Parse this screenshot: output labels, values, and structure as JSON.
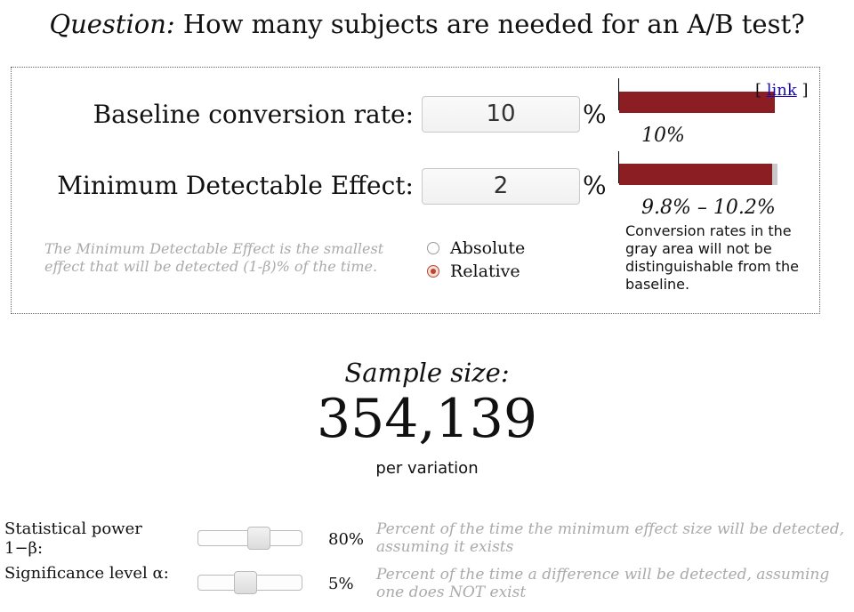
{
  "header": {
    "question_prefix": "Question:",
    "question_text": " How many subjects are needed for an A/B test?"
  },
  "baseline": {
    "label": "Baseline conversion rate:",
    "value": "10",
    "unit": "%",
    "bar_fraction": 1.0,
    "bar_caption": "10%"
  },
  "mde": {
    "label": "Minimum Detectable Effect:",
    "value": "2",
    "unit": "%",
    "range_caption": "9.8% – 10.2%",
    "range_note": "Conversion rates in the gray area will not be distinguishable from the baseline.",
    "help": "The Minimum Detectable Effect is the smallest effect that will be detected (1-β)% of the time."
  },
  "mode": {
    "options": [
      "Absolute",
      "Relative"
    ],
    "selected": "Relative"
  },
  "link": {
    "open": "[ ",
    "label": "link",
    "close": " ]"
  },
  "result": {
    "label": "Sample size:",
    "value": "354,139",
    "suffix": "per variation"
  },
  "power": {
    "label": "Statistical power 1−β:",
    "value": "80%",
    "level": 0.8,
    "help": "Percent of the time the minimum effect size will be detected, assuming it exists"
  },
  "significance": {
    "label": "Significance level α:",
    "value": "5%",
    "level": 0.05,
    "help": "Percent of the time a difference will be detected, assuming one does NOT exist"
  },
  "colors": {
    "bar": "#8b1e22",
    "range": "#c8c8c8",
    "radio_selected": "#c0442a"
  }
}
